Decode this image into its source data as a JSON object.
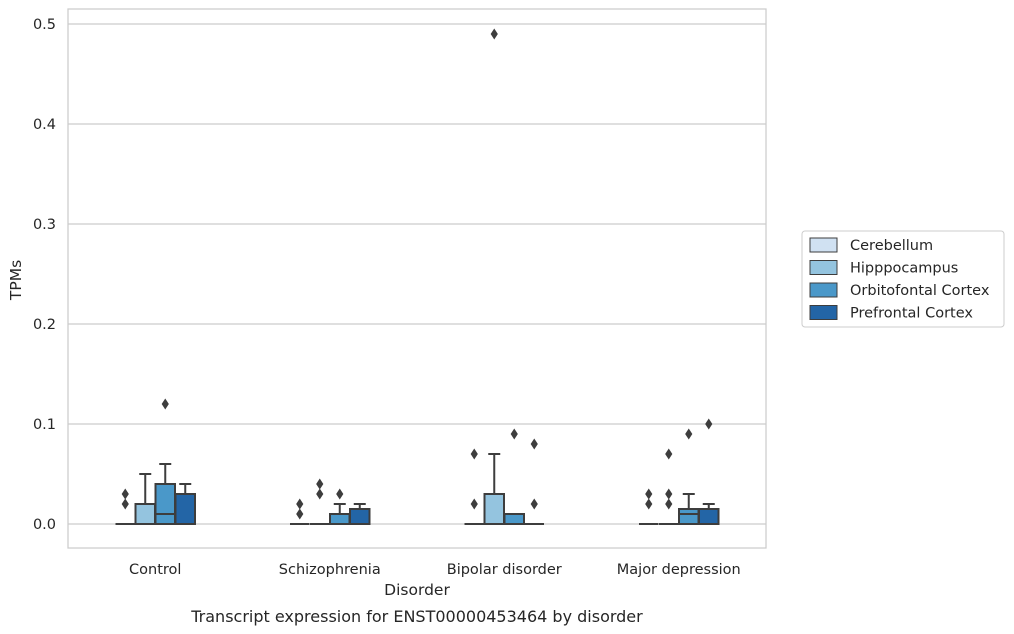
{
  "chart_data": {
    "type": "box",
    "caption": "Transcript expression for ENST00000453464 by disorder",
    "xlabel": "Disorder",
    "ylabel": "TPMs",
    "categories": [
      "Control",
      "Schizophrenia",
      "Bipolar disorder",
      "Major depression"
    ],
    "ylim": [
      -0.024,
      0.515
    ],
    "yticks": [
      0.0,
      0.1,
      0.2,
      0.3,
      0.4,
      0.5
    ],
    "ytick_labels": [
      "0.0",
      "0.1",
      "0.2",
      "0.3",
      "0.4",
      "0.5"
    ],
    "grid": "horizontal",
    "legend_position": "right",
    "series": [
      {
        "name": "Cerebellum",
        "color": "#d0e1f2",
        "boxes": [
          {
            "q1": 0,
            "median": 0,
            "q3": 0,
            "whisker_low": 0,
            "whisker_high": 0,
            "outliers": [
              0.02,
              0.03
            ]
          },
          {
            "q1": 0,
            "median": 0,
            "q3": 0,
            "whisker_low": 0,
            "whisker_high": 0,
            "outliers": [
              0.01,
              0.02
            ]
          },
          {
            "q1": 0,
            "median": 0,
            "q3": 0,
            "whisker_low": 0,
            "whisker_high": 0,
            "outliers": [
              0.02,
              0.07
            ]
          },
          {
            "q1": 0,
            "median": 0,
            "q3": 0,
            "whisker_low": 0,
            "whisker_high": 0,
            "outliers": [
              0.02,
              0.03
            ]
          }
        ]
      },
      {
        "name": "Hipppocampus",
        "color": "#94c4df",
        "boxes": [
          {
            "q1": 0,
            "median": 0,
            "q3": 0.02,
            "whisker_low": 0,
            "whisker_high": 0.05,
            "outliers": []
          },
          {
            "q1": 0,
            "median": 0,
            "q3": 0,
            "whisker_low": 0,
            "whisker_high": 0,
            "outliers": [
              0.03,
              0.04
            ]
          },
          {
            "q1": 0,
            "median": 0,
            "q3": 0.03,
            "whisker_low": 0,
            "whisker_high": 0.07,
            "outliers": [
              0.49
            ]
          },
          {
            "q1": 0,
            "median": 0,
            "q3": 0,
            "whisker_low": 0,
            "whisker_high": 0,
            "outliers": [
              0.02,
              0.03,
              0.07
            ]
          }
        ]
      },
      {
        "name": "Orbitofontal Cortex",
        "color": "#4a98c9",
        "boxes": [
          {
            "q1": 0,
            "median": 0.01,
            "q3": 0.04,
            "whisker_low": 0,
            "whisker_high": 0.06,
            "outliers": [
              0.12
            ]
          },
          {
            "q1": 0,
            "median": 0,
            "q3": 0.01,
            "whisker_low": 0,
            "whisker_high": 0.02,
            "outliers": [
              0.03
            ]
          },
          {
            "q1": 0,
            "median": 0,
            "q3": 0.01,
            "whisker_low": 0,
            "whisker_high": 0.01,
            "outliers": [
              0.09
            ]
          },
          {
            "q1": 0,
            "median": 0.01,
            "q3": 0.015,
            "whisker_low": 0,
            "whisker_high": 0.03,
            "outliers": [
              0.09
            ]
          }
        ]
      },
      {
        "name": "Prefrontal Cortex",
        "color": "#2365a6",
        "boxes": [
          {
            "q1": 0,
            "median": 0,
            "q3": 0.03,
            "whisker_low": 0,
            "whisker_high": 0.04,
            "outliers": []
          },
          {
            "q1": 0,
            "median": 0,
            "q3": 0.015,
            "whisker_low": 0,
            "whisker_high": 0.02,
            "outliers": []
          },
          {
            "q1": 0,
            "median": 0,
            "q3": 0,
            "whisker_low": 0,
            "whisker_high": 0,
            "outliers": [
              0.02,
              0.08
            ]
          },
          {
            "q1": 0,
            "median": 0,
            "q3": 0.015,
            "whisker_low": 0,
            "whisker_high": 0.02,
            "outliers": [
              0.1
            ]
          }
        ]
      }
    ]
  }
}
